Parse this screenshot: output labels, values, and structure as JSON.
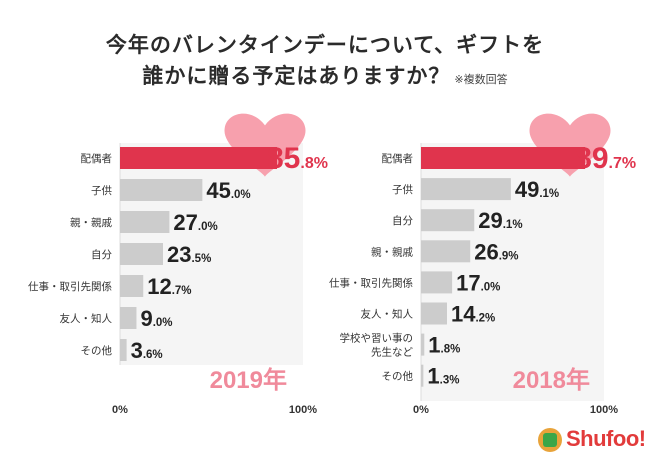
{
  "title": {
    "line1": "今年のバレンタインデーについて、ギフトを",
    "line2": "誰かに贈る予定はありますか？",
    "note": "※複数回答"
  },
  "chart_data": [
    {
      "type": "bar",
      "orientation": "horizontal",
      "year_label": "2019年",
      "categories": [
        "配偶者",
        "子供",
        "親・親戚",
        "自分",
        "仕事・取引先関係",
        "友人・知人",
        "その他"
      ],
      "values": [
        85.8,
        45.0,
        27.0,
        23.5,
        12.7,
        9.0,
        3.6
      ],
      "value_labels": [
        {
          "int": "85",
          "dec": ".8%"
        },
        {
          "int": "45",
          "dec": ".0%"
        },
        {
          "int": "27",
          "dec": ".0%"
        },
        {
          "int": "23",
          "dec": ".5%"
        },
        {
          "int": "12",
          "dec": ".7%"
        },
        {
          "int": "9",
          "dec": ".0%"
        },
        {
          "int": "3",
          "dec": ".6%"
        }
      ],
      "highlight_index": 0,
      "xlim": [
        0,
        100
      ],
      "x_ticks": [
        "0%",
        "100%"
      ]
    },
    {
      "type": "bar",
      "orientation": "horizontal",
      "year_label": "2018年",
      "categories": [
        "配偶者",
        "子供",
        "自分",
        "親・親戚",
        "仕事・取引先関係",
        "友人・知人",
        "学校や習い事の\n先生など",
        "その他"
      ],
      "values": [
        89.7,
        49.1,
        29.1,
        26.9,
        17.0,
        14.2,
        1.8,
        1.3
      ],
      "value_labels": [
        {
          "int": "89",
          "dec": ".7%"
        },
        {
          "int": "49",
          "dec": ".1%"
        },
        {
          "int": "29",
          "dec": ".1%"
        },
        {
          "int": "26",
          "dec": ".9%"
        },
        {
          "int": "17",
          "dec": ".0%"
        },
        {
          "int": "14",
          "dec": ".2%"
        },
        {
          "int": "1",
          "dec": ".8%"
        },
        {
          "int": "1",
          "dec": ".3%"
        }
      ],
      "highlight_index": 0,
      "xlim": [
        0,
        100
      ],
      "x_ticks": [
        "0%",
        "100%"
      ]
    }
  ],
  "colors": {
    "highlight_bar": "#e0344d",
    "bar": "#cccccc",
    "panel_bg": "#f5f5f5",
    "heart": "#f7a0ad",
    "year_label": "#f08a9b",
    "highlight_text": "#e0344d",
    "value_text": "#222222"
  },
  "logo": {
    "text": "Shufoo!"
  }
}
